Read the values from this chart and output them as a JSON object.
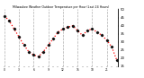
{
  "title": "Milwaukee Weather Outdoor Temperature per Hour (Last 24 Hours)",
  "hours": [
    0,
    1,
    2,
    3,
    4,
    5,
    6,
    7,
    8,
    9,
    10,
    11,
    12,
    13,
    14,
    15,
    16,
    17,
    18,
    19,
    20,
    21,
    22,
    23
  ],
  "temps": [
    46,
    43,
    38,
    33,
    28,
    24,
    22,
    21,
    24,
    28,
    32,
    36,
    38,
    39,
    40,
    37,
    34,
    37,
    38,
    36,
    34,
    31,
    27,
    19
  ],
  "line_color": "#ff0000",
  "marker_color": "#111111",
  "grid_color": "#999999",
  "bg_color": "#ffffff",
  "ylim_min": 15,
  "ylim_max": 50,
  "grid_hours": [
    0,
    3,
    6,
    9,
    12,
    15,
    18,
    21
  ]
}
